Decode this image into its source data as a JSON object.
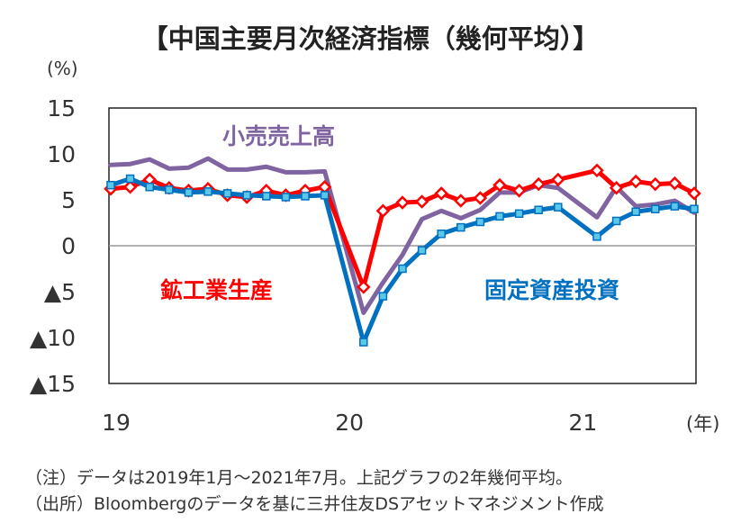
{
  "chart_data": {
    "type": "line",
    "title": "【中国主要月次経済指標（幾何平均）】",
    "ylabel": "(%)",
    "xlabel": "(年)",
    "ylim": [
      -15,
      15
    ],
    "yticks": [
      {
        "value": 15,
        "label": "15"
      },
      {
        "value": 10,
        "label": "10"
      },
      {
        "value": 5,
        "label": "5"
      },
      {
        "value": 0,
        "label": "0"
      },
      {
        "value": -5,
        "label": "▲5"
      },
      {
        "value": -10,
        "label": "▲10"
      },
      {
        "value": -15,
        "label": "▲15"
      }
    ],
    "xticks": [
      {
        "index": 0,
        "label": "19"
      },
      {
        "index": 12,
        "label": "20"
      },
      {
        "index": 24,
        "label": "21"
      }
    ],
    "x": [
      "2019-01",
      "2019-02",
      "2019-03",
      "2019-04",
      "2019-05",
      "2019-06",
      "2019-07",
      "2019-08",
      "2019-09",
      "2019-10",
      "2019-11",
      "2019-12",
      "2020-01",
      "2020-02",
      "2020-03",
      "2020-04",
      "2020-05",
      "2020-06",
      "2020-07",
      "2020-08",
      "2020-09",
      "2020-10",
      "2020-11",
      "2020-12",
      "2021-01",
      "2021-02",
      "2021-03",
      "2021-04",
      "2021-05",
      "2021-06",
      "2021-07"
    ],
    "series": [
      {
        "name": "小売売上高",
        "color": "#8064a2",
        "marker": "none",
        "values": [
          8.8,
          8.9,
          9.4,
          8.4,
          8.5,
          9.5,
          8.3,
          8.3,
          8.6,
          8.0,
          8.0,
          8.1,
          null,
          -7.3,
          -4.0,
          -1.0,
          2.9,
          3.8,
          3.0,
          3.9,
          5.8,
          5.8,
          6.6,
          6.3,
          null,
          3.1,
          6.4,
          4.3,
          4.5,
          4.9,
          3.6
        ]
      },
      {
        "name": "鉱工業生産",
        "color": "#ff0000",
        "marker": "diamond",
        "values": [
          6.2,
          6.4,
          7.2,
          6.3,
          6.0,
          6.2,
          5.5,
          5.3,
          6.0,
          5.5,
          6.0,
          6.4,
          null,
          -4.5,
          3.8,
          4.7,
          4.8,
          5.7,
          4.9,
          5.2,
          6.6,
          6.0,
          6.7,
          7.2,
          null,
          8.2,
          6.3,
          7.0,
          6.7,
          6.8,
          5.7
        ]
      },
      {
        "name": "固定資産投資",
        "color": "#0070c0",
        "marker": "square",
        "values": [
          6.6,
          7.3,
          6.4,
          6.1,
          5.8,
          5.9,
          5.7,
          5.5,
          5.4,
          5.3,
          5.4,
          5.5,
          null,
          -10.5,
          -5.5,
          -2.5,
          -0.5,
          1.3,
          2.0,
          2.6,
          3.2,
          3.5,
          3.9,
          4.2,
          null,
          1.0,
          2.7,
          3.7,
          4.0,
          4.3,
          4.0
        ]
      }
    ],
    "annotations": [
      {
        "text": "小売売上高",
        "series": "小売売上高"
      },
      {
        "text": "鉱工業生産",
        "series": "鉱工業生産"
      },
      {
        "text": "固定資産投資",
        "series": "固定資産投資"
      }
    ]
  },
  "notes": {
    "note1": "（注）データは2019年1月～2021年7月。上記グラフの2年幾何平均。",
    "note2": "（出所）Bloombergのデータを基に三井住友DSアセットマネジメント作成"
  }
}
